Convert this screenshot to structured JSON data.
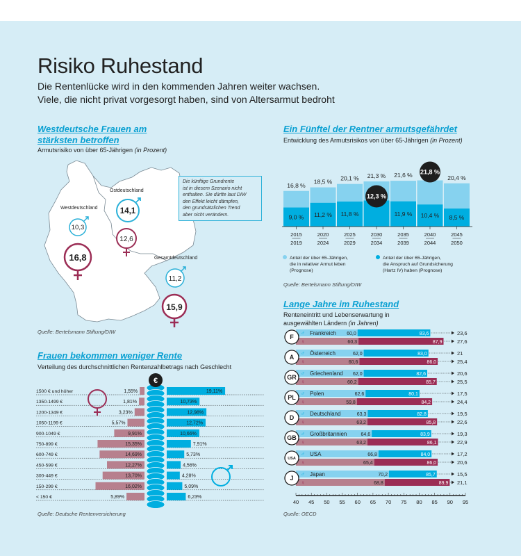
{
  "header": {
    "title": "Risiko Ruhestand",
    "subtitle_line1": "Die Rentenlücke wird in den kommenden Jahren weiter wachsen.",
    "subtitle_line2": "Viele, die nicht privat vorgesorgt haben, sind von Altersarmut bedroht"
  },
  "colors": {
    "background": "#d6edf6",
    "cyan": "#00aee0",
    "light_blue": "#86d2ef",
    "maroon": "#9b2d55",
    "pink": "#b7808e",
    "dark": "#1e1e1e"
  },
  "map_section": {
    "title_line1": "Westdeutsche Frauen am",
    "title_line2": "stärksten betroffen",
    "subtitle": "Armutsrisiko von über 65-Jährigen",
    "subtitle_unit": "(in Prozent)",
    "note": [
      "Die künftige Grundrente",
      "ist in diesem Szenario nicht",
      "enthalten. Sie dürfte laut DIW",
      "den Effekt leicht dämpfen,",
      "den grundsätzlichen Trend",
      "aber nicht verändern."
    ],
    "source": "Quelle: Bertelsmann Stiftung/DIW",
    "regions": [
      {
        "label": "Westdeutschland",
        "male": "10,3",
        "female": "16,8"
      },
      {
        "label": "Ostdeutschland",
        "male": "14,1",
        "female": "12,6"
      },
      {
        "label": "Gesamtdeutschland",
        "male": "11,2",
        "female": "15,9"
      }
    ]
  },
  "chart_data": [
    {
      "id": "poverty_risk_periods",
      "type": "bar",
      "title": "Ein Fünftel der Rentner armutsgefährdet",
      "subtitle": "Entwicklung des Armutsrisikos von über 65-Jährigen",
      "subtitle_unit": "(in Prozent)",
      "categories": [
        [
          "2015",
          "2019"
        ],
        [
          "2020",
          "2024"
        ],
        [
          "2025",
          "2029"
        ],
        [
          "2030",
          "2034"
        ],
        [
          "2035",
          "2039"
        ],
        [
          "2040",
          "2044"
        ],
        [
          "2045",
          "2050"
        ]
      ],
      "series": [
        {
          "name": "Anteil der über 65-Jährigen, die in relativer Armut leben (Prognose)",
          "values": [
            16.8,
            18.5,
            20.1,
            21.3,
            21.6,
            21.8,
            20.4
          ],
          "labels": [
            "16,8 %",
            "18,5 %",
            "20,1 %",
            "21,3 %",
            "21,6 %",
            "21,8 %",
            "20,4 %"
          ]
        },
        {
          "name": "Anteil der über 65-Jährigen, die Anspruch auf Grundsicherung (Hartz IV) haben (Prognose)",
          "values": [
            9.0,
            11.2,
            11.8,
            12.3,
            11.9,
            10.4,
            8.5
          ],
          "labels": [
            "9,0 %",
            "11,2 %",
            "11,8 %",
            "12,3 %",
            "11,9 %",
            "10,4 %",
            "8,5 %"
          ]
        }
      ],
      "legend": [
        [
          "Anteil der über 65-Jährigen,",
          "die in relativer Armut leben",
          "(Prognose)"
        ],
        [
          "Anteil der über 65-Jährigen,",
          "die Anspruch auf Grundsicherung",
          "(Hartz IV) haben (Prognose)"
        ]
      ],
      "source": "Quelle: Bertelsmann Stiftung/DIW"
    },
    {
      "id": "pension_distribution",
      "type": "bar",
      "title": "Frauen bekommen weniger Rente",
      "subtitle": "Verteilung des durchschnittlichen Rentenzahlbetrags nach Geschlecht",
      "categories": [
        "1500 € und höher",
        "1350-1499 €",
        "1200-1349 €",
        "1050-1199 €",
        "900-1049 €",
        "750-899 €",
        "600-749 €",
        "450-599 €",
        "300-449 €",
        "150-299 €",
        "< 150 €"
      ],
      "series": [
        {
          "name": "Frauen",
          "values": [
            1.55,
            1.81,
            3.23,
            5.57,
            9.91,
            15.35,
            14.69,
            12.27,
            13.7,
            16.02,
            5.89
          ],
          "labels": [
            "1,55%",
            "1,81%",
            "3,23%",
            "5,57%",
            "9,91%",
            "15,35%",
            "14,69%",
            "12,27%",
            "13,70%",
            "16,02%",
            "5,89%"
          ]
        },
        {
          "name": "Männer",
          "values": [
            19.11,
            10.73,
            12.98,
            12.72,
            10.66,
            7.91,
            5.73,
            4.56,
            4.28,
            5.09,
            6.23
          ],
          "labels": [
            "19,11%",
            "10,73%",
            "12,98%",
            "12,72%",
            "10,66%",
            "7,91%",
            "5,73%",
            "4,56%",
            "4,28%",
            "5,09%",
            "6,23%"
          ]
        }
      ],
      "icon": "euro-icon",
      "source": "Quelle: Deutsche Rentenversicherung"
    },
    {
      "id": "retirement_years",
      "type": "bar",
      "title": "Lange Jahre im Ruhestand",
      "subtitle_line1": "Renteneintritt und Lebenserwartung in",
      "subtitle_line2": "ausgewählten Ländern",
      "subtitle_unit": "(in Jahren)",
      "x_ticks": [
        "40",
        "45",
        "50",
        "55",
        "60",
        "65",
        "70",
        "75",
        "80",
        "85",
        "90",
        "95"
      ],
      "xlim": [
        40,
        95
      ],
      "countries": [
        {
          "code": "F",
          "name": "Frankreich",
          "male": {
            "entry": 60.0,
            "life": 83.6,
            "entry_label": "60,0",
            "life_label": "83,6",
            "diff": "23,6"
          },
          "female": {
            "entry": 60.3,
            "life": 87.9,
            "entry_label": "60,3",
            "life_label": "87,9",
            "diff": "27,6"
          }
        },
        {
          "code": "A",
          "name": "Österreich",
          "male": {
            "entry": 62.0,
            "life": 83.0,
            "entry_label": "62,0",
            "life_label": "83,0",
            "diff": "21"
          },
          "female": {
            "entry": 60.6,
            "life": 86.0,
            "entry_label": "60,6",
            "life_label": "86,0",
            "diff": "25,4"
          }
        },
        {
          "code": "GR",
          "name": "Griechenland",
          "male": {
            "entry": 62.0,
            "life": 82.6,
            "entry_label": "62,0",
            "life_label": "82,6",
            "diff": "20,6"
          },
          "female": {
            "entry": 60.2,
            "life": 85.7,
            "entry_label": "60,2",
            "life_label": "85,7",
            "diff": "25,5"
          }
        },
        {
          "code": "PL",
          "name": "Polen",
          "male": {
            "entry": 62.6,
            "life": 80.1,
            "entry_label": "62,6",
            "life_label": "80,1",
            "diff": "17,5"
          },
          "female": {
            "entry": 59.8,
            "life": 84.2,
            "entry_label": "59,8",
            "life_label": "84,2",
            "diff": "24,4"
          }
        },
        {
          "code": "D",
          "name": "Deutschland",
          "male": {
            "entry": 63.3,
            "life": 82.8,
            "entry_label": "63,3",
            "life_label": "82,8",
            "diff": "19,5"
          },
          "female": {
            "entry": 63.2,
            "life": 85.8,
            "entry_label": "63,2",
            "life_label": "85,8",
            "diff": "22,6"
          }
        },
        {
          "code": "GB",
          "name": "Großbritannien",
          "male": {
            "entry": 64.6,
            "life": 83.9,
            "entry_label": "64,6",
            "life_label": "83,9",
            "diff": "19,3"
          },
          "female": {
            "entry": 63.2,
            "life": 86.1,
            "entry_label": "63,2",
            "life_label": "86,1",
            "diff": "22,9"
          }
        },
        {
          "code": "USA",
          "name": "USA",
          "male": {
            "entry": 66.8,
            "life": 84.0,
            "entry_label": "66,8",
            "life_label": "84,0",
            "diff": "17,2"
          },
          "female": {
            "entry": 65.4,
            "life": 86.0,
            "entry_label": "65,4",
            "life_label": "86,0",
            "diff": "20,6"
          }
        },
        {
          "code": "J",
          "name": "Japan",
          "male": {
            "entry": 70.2,
            "life": 85.7,
            "entry_label": "70,2",
            "life_label": "85,7",
            "diff": "15,5"
          },
          "female": {
            "entry": 68.8,
            "life": 89.9,
            "entry_label": "68,8",
            "life_label": "89,9",
            "diff": "21,1"
          }
        }
      ],
      "source": "Quelle: OECD"
    }
  ]
}
